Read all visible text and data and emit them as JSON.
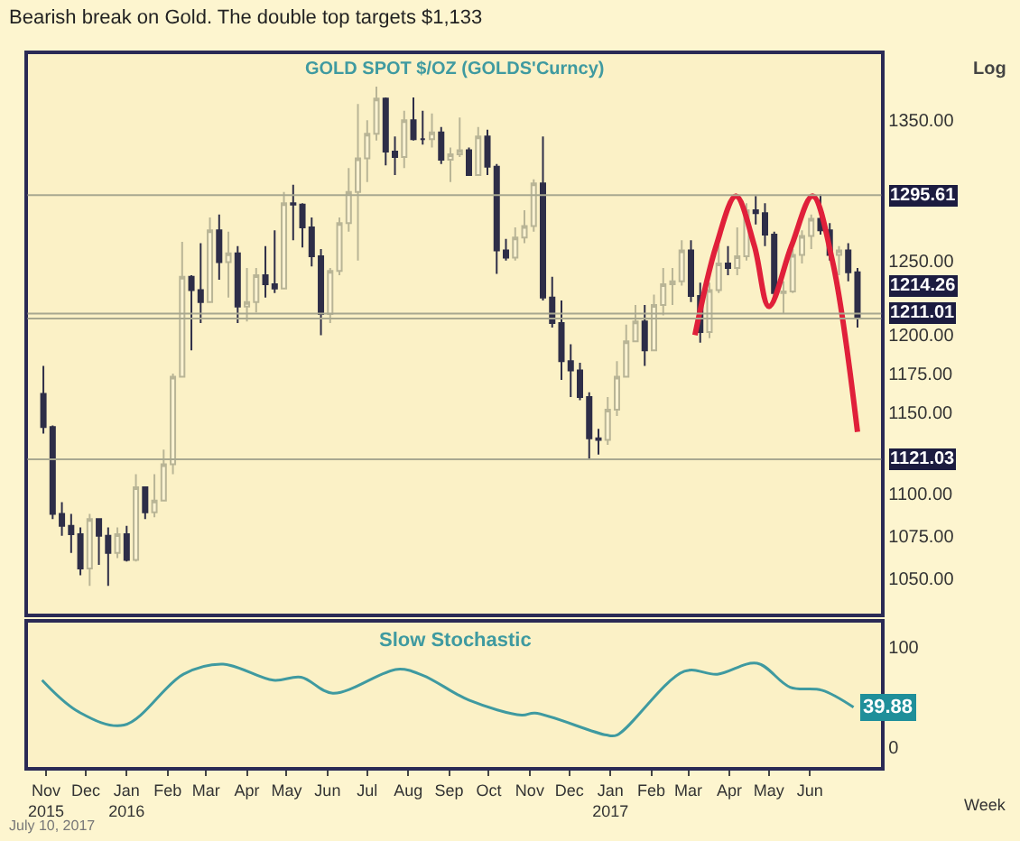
{
  "chart_data": [
    {
      "type": "candlestick",
      "title": "Bearish break on Gold. The double top targets $1,133",
      "subtitle": "GOLD SPOT $/OZ (GOLDS'Curncy)",
      "ylabel": "Log",
      "log": true,
      "tick_labels": "y",
      "xlim": [
        "2015-10-18",
        "2017-07-25"
      ],
      "ylim": [
        1030,
        1400
      ],
      "yticks": [
        {
          "value": 1350,
          "label": "1350.00"
        },
        {
          "value": 1250,
          "label": "1250.00"
        },
        {
          "value": 1200,
          "label": "1200.00"
        },
        {
          "value": 1175,
          "label": "1175.00"
        },
        {
          "value": 1150,
          "label": "1150.00"
        },
        {
          "value": 1100,
          "label": "1100.00"
        },
        {
          "value": 1075,
          "label": "1075.00"
        },
        {
          "value": 1050,
          "label": "1050.00"
        }
      ],
      "ref_lines": [
        {
          "axis": "y",
          "value": 1295.61,
          "label": "1295.61",
          "color": "#a8a890"
        },
        {
          "axis": "y",
          "value": 1214.26,
          "label": "1214.26",
          "color": "#a8a890"
        },
        {
          "axis": "y",
          "value": 1211.01,
          "label": "1211.01",
          "color": "#a8a890"
        },
        {
          "axis": "y",
          "value": 1121.03,
          "label": "1121.03",
          "color": "#a8a890"
        }
      ],
      "x": [
        "2015-10-30",
        "2015-11-06",
        "2015-11-13",
        "2015-11-20",
        "2015-11-27",
        "2015-12-04",
        "2015-12-11",
        "2015-12-18",
        "2015-12-25",
        "2016-01-01",
        "2016-01-08",
        "2016-01-15",
        "2016-01-22",
        "2016-01-29",
        "2016-02-05",
        "2016-02-12",
        "2016-02-19",
        "2016-02-26",
        "2016-03-04",
        "2016-03-11",
        "2016-03-18",
        "2016-03-25",
        "2016-04-01",
        "2016-04-08",
        "2016-04-15",
        "2016-04-22",
        "2016-04-29",
        "2016-05-06",
        "2016-05-13",
        "2016-05-20",
        "2016-05-27",
        "2016-06-03",
        "2016-06-10",
        "2016-06-17",
        "2016-06-24",
        "2016-07-01",
        "2016-07-08",
        "2016-07-15",
        "2016-07-22",
        "2016-07-29",
        "2016-08-05",
        "2016-08-12",
        "2016-08-19",
        "2016-08-26",
        "2016-09-02",
        "2016-09-09",
        "2016-09-16",
        "2016-09-23",
        "2016-09-30",
        "2016-10-07",
        "2016-10-14",
        "2016-10-21",
        "2016-10-28",
        "2016-11-04",
        "2016-11-11",
        "2016-11-18",
        "2016-11-25",
        "2016-12-02",
        "2016-12-09",
        "2016-12-16",
        "2016-12-23",
        "2016-12-30",
        "2017-01-06",
        "2017-01-13",
        "2017-01-20",
        "2017-01-27",
        "2017-02-03",
        "2017-02-10",
        "2017-02-17",
        "2017-02-24",
        "2017-03-03",
        "2017-03-10",
        "2017-03-17",
        "2017-03-24",
        "2017-03-31",
        "2017-04-07",
        "2017-04-14",
        "2017-04-21",
        "2017-04-28",
        "2017-05-05",
        "2017-05-12",
        "2017-05-19",
        "2017-05-26",
        "2017-06-02",
        "2017-06-09",
        "2017-06-16",
        "2017-06-23",
        "2017-06-30",
        "2017-07-07"
      ],
      "ohlc": [
        [
          1162,
          1180,
          1137,
          1141
        ],
        [
          1141,
          1142,
          1085,
          1088
        ],
        [
          1088,
          1095,
          1075,
          1081
        ],
        [
          1081,
          1088,
          1065,
          1076
        ],
        [
          1076,
          1080,
          1052,
          1056
        ],
        [
          1056,
          1088,
          1046,
          1085
        ],
        [
          1085,
          1085,
          1058,
          1075
        ],
        [
          1075,
          1080,
          1046,
          1065
        ],
        [
          1065,
          1080,
          1062,
          1076
        ],
        [
          1076,
          1081,
          1060,
          1061
        ],
        [
          1061,
          1112,
          1060,
          1104
        ],
        [
          1104,
          1104,
          1085,
          1089
        ],
        [
          1089,
          1112,
          1086,
          1096
        ],
        [
          1096,
          1127,
          1096,
          1118
        ],
        [
          1118,
          1175,
          1112,
          1173
        ],
        [
          1173,
          1263,
          1173,
          1239
        ],
        [
          1239,
          1240,
          1190,
          1230
        ],
        [
          1230,
          1262,
          1208,
          1222
        ],
        [
          1222,
          1280,
          1222,
          1271
        ],
        [
          1271,
          1282,
          1237,
          1249
        ],
        [
          1249,
          1270,
          1225,
          1255
        ],
        [
          1255,
          1260,
          1208,
          1219
        ],
        [
          1219,
          1245,
          1209,
          1222
        ],
        [
          1222,
          1245,
          1215,
          1240
        ],
        [
          1240,
          1260,
          1225,
          1234
        ],
        [
          1234,
          1271,
          1228,
          1231
        ],
        [
          1231,
          1298,
          1231,
          1290
        ],
        [
          1290,
          1303,
          1264,
          1289
        ],
        [
          1289,
          1290,
          1259,
          1273
        ],
        [
          1273,
          1280,
          1246,
          1253
        ],
        [
          1253,
          1258,
          1200,
          1214
        ],
        [
          1214,
          1245,
          1208,
          1243
        ],
        [
          1243,
          1280,
          1240,
          1276
        ],
        [
          1276,
          1315,
          1270,
          1298
        ],
        [
          1298,
          1362,
          1250,
          1322
        ],
        [
          1322,
          1350,
          1305,
          1340
        ],
        [
          1340,
          1375,
          1335,
          1366
        ],
        [
          1366,
          1367,
          1317,
          1327
        ],
        [
          1327,
          1338,
          1310,
          1323
        ],
        [
          1323,
          1357,
          1315,
          1350
        ],
        [
          1350,
          1367,
          1335,
          1336
        ],
        [
          1336,
          1357,
          1332,
          1336
        ],
        [
          1336,
          1355,
          1330,
          1341
        ],
        [
          1341,
          1345,
          1318,
          1321
        ],
        [
          1321,
          1330,
          1305,
          1325
        ],
        [
          1325,
          1352,
          1323,
          1328
        ],
        [
          1328,
          1330,
          1310,
          1310
        ],
        [
          1310,
          1345,
          1310,
          1338
        ],
        [
          1338,
          1343,
          1310,
          1316
        ],
        [
          1316,
          1318,
          1241,
          1257
        ],
        [
          1257,
          1265,
          1250,
          1252
        ],
        [
          1252,
          1273,
          1250,
          1266
        ],
        [
          1266,
          1285,
          1262,
          1274
        ],
        [
          1274,
          1307,
          1270,
          1304
        ],
        [
          1304,
          1338,
          1223,
          1225
        ],
        [
          1225,
          1239,
          1205,
          1208
        ],
        [
          1208,
          1223,
          1171,
          1183
        ],
        [
          1183,
          1194,
          1160,
          1177
        ],
        [
          1177,
          1182,
          1158,
          1160
        ],
        [
          1160,
          1163,
          1121,
          1134
        ],
        [
          1134,
          1140,
          1124,
          1133
        ],
        [
          1133,
          1160,
          1130,
          1152
        ],
        [
          1152,
          1183,
          1148,
          1173
        ],
        [
          1173,
          1207,
          1173,
          1196
        ],
        [
          1196,
          1220,
          1196,
          1209
        ],
        [
          1209,
          1220,
          1180,
          1190
        ],
        [
          1190,
          1227,
          1190,
          1220
        ],
        [
          1220,
          1245,
          1213,
          1234
        ],
        [
          1234,
          1245,
          1220,
          1236
        ],
        [
          1236,
          1264,
          1233,
          1257
        ],
        [
          1257,
          1264,
          1222,
          1226
        ],
        [
          1226,
          1235,
          1195,
          1202
        ],
        [
          1202,
          1235,
          1198,
          1230
        ],
        [
          1230,
          1261,
          1228,
          1248
        ],
        [
          1248,
          1260,
          1240,
          1245
        ],
        [
          1245,
          1273,
          1240,
          1253
        ],
        [
          1253,
          1290,
          1250,
          1285
        ],
        [
          1285,
          1295,
          1275,
          1283
        ],
        [
          1283,
          1290,
          1260,
          1268
        ],
        [
          1268,
          1270,
          1226,
          1228
        ],
        [
          1228,
          1236,
          1214,
          1229
        ],
        [
          1229,
          1258,
          1228,
          1254
        ],
        [
          1254,
          1271,
          1248,
          1267
        ],
        [
          1267,
          1282,
          1258,
          1279
        ],
        [
          1279,
          1296,
          1268,
          1271
        ],
        [
          1271,
          1276,
          1250,
          1254
        ],
        [
          1254,
          1260,
          1240,
          1257
        ],
        [
          1257,
          1262,
          1236,
          1242
        ],
        [
          1242,
          1245,
          1205,
          1211
        ]
      ],
      "series": [
        {
          "type": "line",
          "color": "#e0203a",
          "x": [
            "2017-03-06",
            "2017-03-22",
            "2017-04-06",
            "2017-04-20",
            "2017-05-01",
            "2017-05-18",
            "2017-06-03",
            "2017-06-18",
            "2017-07-07"
          ],
          "values": [
            1200,
            1260,
            1295,
            1260,
            1219,
            1260,
            1295,
            1250,
            1138
          ]
        }
      ]
    },
    {
      "type": "line",
      "title": "Slow Stochastic",
      "xlabel": "Week",
      "marker": "none",
      "line_style": "solid",
      "xlim": [
        "2015-10-18",
        "2017-07-25"
      ],
      "ylim": [
        -20,
        125
      ],
      "yticks": [
        0,
        100
      ],
      "xticks": [
        {
          "value": "2015-11-01",
          "label": "Nov\n2015"
        },
        {
          "value": "2015-12-01",
          "label": "Dec"
        },
        {
          "value": "2016-01-01",
          "label": "Jan\n2016"
        },
        {
          "value": "2016-02-01",
          "label": "Feb"
        },
        {
          "value": "2016-03-01",
          "label": "Mar"
        },
        {
          "value": "2016-04-01",
          "label": "Apr"
        },
        {
          "value": "2016-05-01",
          "label": "May"
        },
        {
          "value": "2016-06-01",
          "label": "Jun"
        },
        {
          "value": "2016-07-01",
          "label": "Jul"
        },
        {
          "value": "2016-08-01",
          "label": "Aug"
        },
        {
          "value": "2016-09-01",
          "label": "Sep"
        },
        {
          "value": "2016-10-01",
          "label": "Oct"
        },
        {
          "value": "2016-11-01",
          "label": "Nov"
        },
        {
          "value": "2016-12-01",
          "label": "Dec"
        },
        {
          "value": "2017-01-01",
          "label": "Jan\n2017"
        },
        {
          "value": "2017-02-01",
          "label": "Feb"
        },
        {
          "value": "2017-03-01",
          "label": "Mar"
        },
        {
          "value": "2017-04-01",
          "label": "Apr"
        },
        {
          "value": "2017-05-01",
          "label": "May"
        },
        {
          "value": "2017-06-01",
          "label": "Jun"
        }
      ],
      "series": [
        {
          "color": "#3f9aa0",
          "x": [
            "2015-10-29",
            "2015-11-26",
            "2015-12-30",
            "2016-02-13",
            "2016-03-14",
            "2016-04-21",
            "2016-05-12",
            "2016-06-05",
            "2016-07-24",
            "2016-08-12",
            "2016-09-16",
            "2016-10-26",
            "2016-11-05",
            "2016-12-29",
            "2017-01-06",
            "2017-02-26",
            "2017-03-23",
            "2017-04-22",
            "2017-05-17",
            "2017-06-10",
            "2017-07-04"
          ],
          "values": [
            67,
            35,
            22,
            73,
            83,
            67,
            70,
            54,
            78,
            72,
            47,
            32,
            34,
            12,
            12,
            76,
            73,
            84,
            60,
            57,
            39.88
          ],
          "value_labels": [
            null,
            null,
            null,
            null,
            null,
            null,
            null,
            null,
            null,
            null,
            null,
            null,
            null,
            null,
            null,
            null,
            null,
            null,
            null,
            null,
            "39.88"
          ]
        }
      ],
      "annotations": [
        "July 10, 2017"
      ]
    }
  ]
}
